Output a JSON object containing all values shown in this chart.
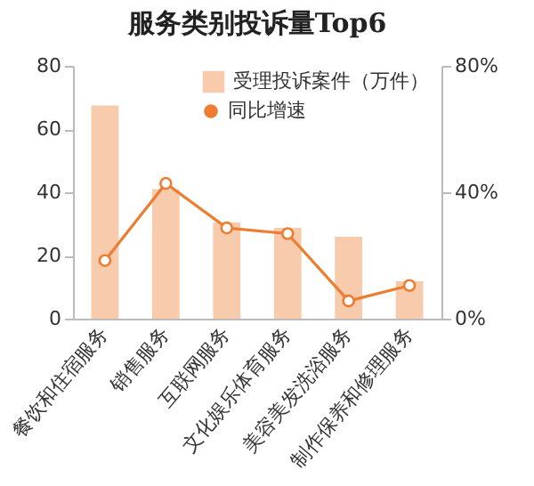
{
  "chart_data": {
    "type": "bar",
    "title": "服务类别投诉量Top6",
    "categories": [
      "餐饮和住宿服务",
      "销售服务",
      "互联网服务",
      "文化娱乐体育服务",
      "美容美发洗浴服务",
      "制作保养和修理服务"
    ],
    "series": [
      {
        "name": "受理投诉案件（万件）",
        "color": "#f8cbad",
        "values": [
          67.5,
          41,
          30.4,
          28.7,
          25.9,
          11.8
        ]
      },
      {
        "name": "同比增速",
        "type": "line",
        "axis": "y2",
        "color": "#ed7d31",
        "marker": "circle",
        "values": [
          18.4,
          42.8,
          28.7,
          26.9,
          5.6,
          10.5
        ]
      }
    ],
    "ylim": [
      0,
      80
    ],
    "yticks": [
      0,
      20,
      40,
      60,
      80
    ],
    "y2lim": [
      0,
      80
    ],
    "y2ticks": [
      {
        "value": 0,
        "label": "0%"
      },
      {
        "value": 40,
        "label": "40%"
      },
      {
        "value": 80,
        "label": "80%"
      }
    ],
    "grid": false,
    "legend": "top"
  }
}
